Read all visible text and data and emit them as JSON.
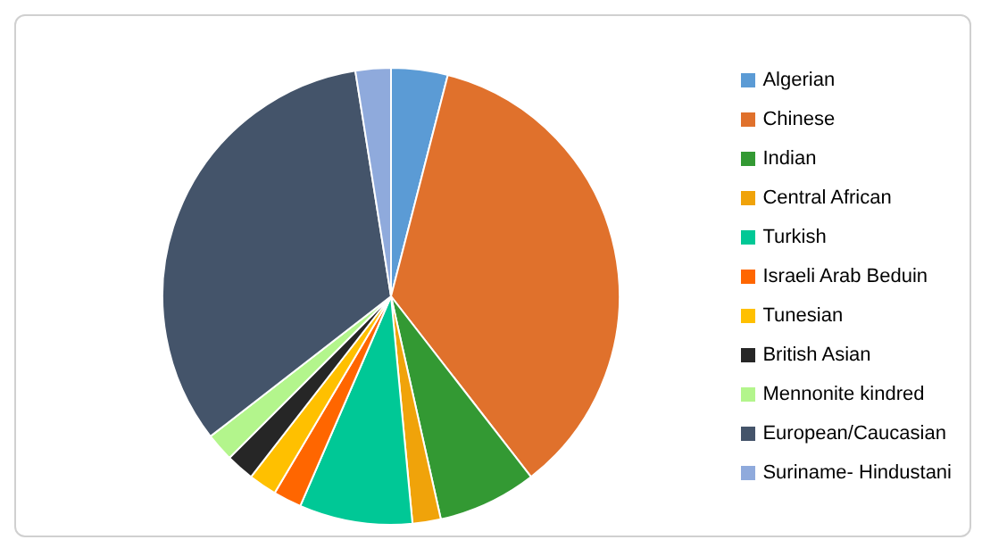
{
  "chart_data": {
    "type": "pie",
    "categories": [
      "Algerian",
      "Chinese",
      "Indian",
      "Central African",
      "Turkish",
      "Israeli Arab Beduin",
      "Tunesian",
      "British Asian",
      "Mennonite kindred",
      "European/Caucasian",
      "Suriname- Hindustani"
    ],
    "values": [
      4,
      35.5,
      7,
      2,
      8,
      2,
      2,
      2,
      2,
      33,
      2.5
    ],
    "colors": [
      "#5b9bd5",
      "#e0712c",
      "#339933",
      "#f0a30a",
      "#00c896",
      "#ff6600",
      "#ffc000",
      "#262626",
      "#b3f58c",
      "#44546a",
      "#8faadc"
    ],
    "legend": "right"
  }
}
